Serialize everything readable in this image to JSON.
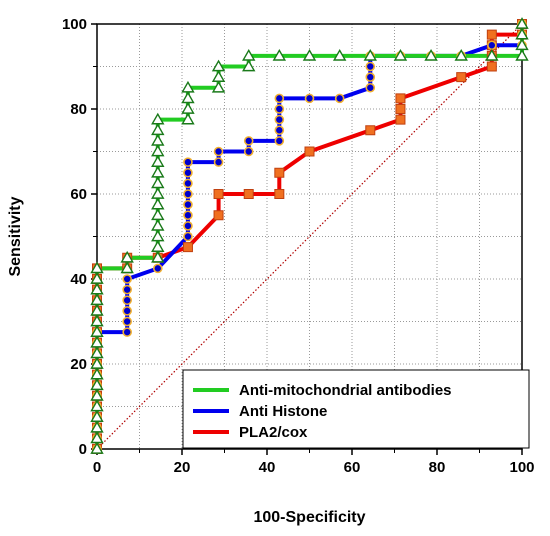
{
  "chart_data": {
    "type": "line",
    "title": "",
    "xlabel": "100-Specificity",
    "ylabel": "Sensitivity",
    "xlim": [
      0,
      100
    ],
    "ylim": [
      0,
      100
    ],
    "xticks": [
      0,
      20,
      40,
      60,
      80,
      100
    ],
    "yticks": [
      0,
      20,
      40,
      60,
      80,
      100
    ],
    "grid": true,
    "reference_line": {
      "from": [
        0,
        0
      ],
      "to": [
        100,
        100
      ],
      "color": "#b00000",
      "style": "dotted"
    },
    "legend_position": "bottom-right",
    "series": [
      {
        "name": "Anti-mitochondrial antibodies",
        "color": "#22cc22",
        "marker": "triangle",
        "marker_fill": "#ffffff",
        "marker_stroke": "#1a7a1a",
        "points": [
          [
            0,
            0
          ],
          [
            0,
            2.5
          ],
          [
            0,
            5
          ],
          [
            0,
            7.5
          ],
          [
            0,
            10
          ],
          [
            0,
            12.5
          ],
          [
            0,
            15
          ],
          [
            0,
            17.5
          ],
          [
            0,
            20
          ],
          [
            0,
            22.5
          ],
          [
            0,
            25
          ],
          [
            0,
            27.5
          ],
          [
            0,
            30
          ],
          [
            0,
            32.5
          ],
          [
            0,
            35
          ],
          [
            0,
            37.5
          ],
          [
            0,
            40
          ],
          [
            0,
            42.5
          ],
          [
            7.1,
            42.5
          ],
          [
            7.1,
            45
          ],
          [
            14.3,
            45
          ],
          [
            14.3,
            47.5
          ],
          [
            14.3,
            50
          ],
          [
            14.3,
            52.5
          ],
          [
            14.3,
            55
          ],
          [
            14.3,
            57.5
          ],
          [
            14.3,
            60
          ],
          [
            14.3,
            62.5
          ],
          [
            14.3,
            65
          ],
          [
            14.3,
            67.5
          ],
          [
            14.3,
            70
          ],
          [
            14.3,
            72.5
          ],
          [
            14.3,
            75
          ],
          [
            14.3,
            77.5
          ],
          [
            21.4,
            77.5
          ],
          [
            21.4,
            80
          ],
          [
            21.4,
            82.5
          ],
          [
            21.4,
            85
          ],
          [
            28.6,
            85
          ],
          [
            28.6,
            87.5
          ],
          [
            28.6,
            90
          ],
          [
            35.7,
            90
          ],
          [
            35.7,
            92.5
          ],
          [
            42.9,
            92.5
          ],
          [
            50,
            92.5
          ],
          [
            57.1,
            92.5
          ],
          [
            64.3,
            92.5
          ],
          [
            71.4,
            92.5
          ],
          [
            78.6,
            92.5
          ],
          [
            85.7,
            92.5
          ],
          [
            92.9,
            92.5
          ],
          [
            100,
            92.5
          ],
          [
            100,
            95
          ],
          [
            100,
            97.5
          ],
          [
            100,
            100
          ]
        ]
      },
      {
        "name": "Anti Histone",
        "color": "#0000ee",
        "marker": "circle",
        "marker_fill": "#0000cc",
        "marker_stroke": "#f0b030",
        "points": [
          [
            0,
            0
          ],
          [
            0,
            2.5
          ],
          [
            0,
            5
          ],
          [
            0,
            7.5
          ],
          [
            0,
            10
          ],
          [
            0,
            12.5
          ],
          [
            0,
            15
          ],
          [
            0,
            17.5
          ],
          [
            0,
            20
          ],
          [
            0,
            22.5
          ],
          [
            0,
            25
          ],
          [
            0,
            27.5
          ],
          [
            7.1,
            27.5
          ],
          [
            7.1,
            30
          ],
          [
            7.1,
            32.5
          ],
          [
            7.1,
            35
          ],
          [
            7.1,
            37.5
          ],
          [
            7.1,
            40
          ],
          [
            14.3,
            42.5
          ],
          [
            21.4,
            50
          ],
          [
            21.4,
            52.5
          ],
          [
            21.4,
            55
          ],
          [
            21.4,
            57.5
          ],
          [
            21.4,
            60
          ],
          [
            21.4,
            62.5
          ],
          [
            21.4,
            65
          ],
          [
            21.4,
            67.5
          ],
          [
            28.6,
            67.5
          ],
          [
            28.6,
            70
          ],
          [
            35.7,
            70
          ],
          [
            35.7,
            72.5
          ],
          [
            42.9,
            72.5
          ],
          [
            42.9,
            75
          ],
          [
            42.9,
            77.5
          ],
          [
            42.9,
            80
          ],
          [
            42.9,
            82.5
          ],
          [
            50,
            82.5
          ],
          [
            57.1,
            82.5
          ],
          [
            64.3,
            85
          ],
          [
            64.3,
            87.5
          ],
          [
            64.3,
            90
          ],
          [
            64.3,
            92.5
          ],
          [
            71.4,
            92.5
          ],
          [
            78.6,
            92.5
          ],
          [
            85.7,
            92.5
          ],
          [
            92.9,
            95
          ],
          [
            100,
            95
          ],
          [
            100,
            97.5
          ],
          [
            100,
            100
          ]
        ]
      },
      {
        "name": "PLA2/cox",
        "color": "#ee0000",
        "marker": "square",
        "marker_fill": "#f07020",
        "marker_stroke": "#c04010",
        "points": [
          [
            0,
            0
          ],
          [
            0,
            2.5
          ],
          [
            0,
            5
          ],
          [
            0,
            7.5
          ],
          [
            0,
            10
          ],
          [
            0,
            12.5
          ],
          [
            0,
            15
          ],
          [
            0,
            17.5
          ],
          [
            0,
            20
          ],
          [
            0,
            22.5
          ],
          [
            0,
            25
          ],
          [
            0,
            27.5
          ],
          [
            0,
            30
          ],
          [
            0,
            32.5
          ],
          [
            0,
            35
          ],
          [
            0,
            37.5
          ],
          [
            0,
            40
          ],
          [
            0,
            42.5
          ],
          [
            7.1,
            42.5
          ],
          [
            7.1,
            45
          ],
          [
            14.3,
            45
          ],
          [
            21.4,
            47.5
          ],
          [
            28.6,
            55
          ],
          [
            28.6,
            60
          ],
          [
            35.7,
            60
          ],
          [
            42.9,
            60
          ],
          [
            42.9,
            65
          ],
          [
            50,
            70
          ],
          [
            64.3,
            75
          ],
          [
            71.4,
            77.5
          ],
          [
            71.4,
            80
          ],
          [
            71.4,
            82.5
          ],
          [
            85.7,
            87.5
          ],
          [
            92.9,
            90
          ],
          [
            92.9,
            92.5
          ],
          [
            92.9,
            95
          ],
          [
            92.9,
            97.5
          ],
          [
            100,
            97.5
          ],
          [
            100,
            100
          ]
        ]
      }
    ]
  }
}
